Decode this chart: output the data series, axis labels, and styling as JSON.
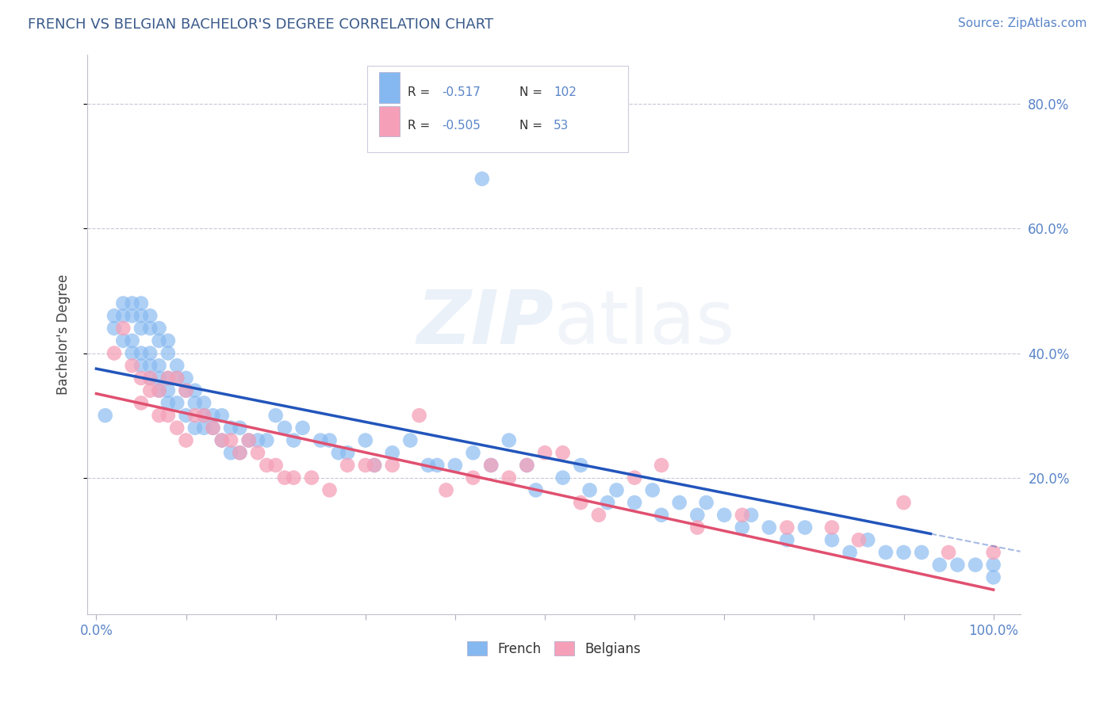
{
  "title": "FRENCH VS BELGIAN BACHELOR'S DEGREE CORRELATION CHART",
  "source": "Source: ZipAtlas.com",
  "ylabel": "Bachelor's Degree",
  "xlabel": "",
  "xlim": [
    -0.01,
    1.03
  ],
  "ylim": [
    -0.02,
    0.88
  ],
  "title_color": "#3a5a8a",
  "axis_color": "#5a85c8",
  "background_color": "#ffffff",
  "french_color": "#85b8f0",
  "belgian_color": "#f5a0b8",
  "french_line_color": "#2255bb",
  "belgian_line_color": "#e05070",
  "watermark": "ZIPatlas",
  "french_intercept": 0.375,
  "french_slope": -0.285,
  "belgian_intercept": 0.335,
  "belgian_slope": -0.315,
  "french_scatter_x": [
    0.01,
    0.02,
    0.02,
    0.03,
    0.03,
    0.03,
    0.04,
    0.04,
    0.04,
    0.04,
    0.05,
    0.05,
    0.05,
    0.05,
    0.05,
    0.06,
    0.06,
    0.06,
    0.06,
    0.06,
    0.07,
    0.07,
    0.07,
    0.07,
    0.07,
    0.08,
    0.08,
    0.08,
    0.08,
    0.08,
    0.09,
    0.09,
    0.09,
    0.1,
    0.1,
    0.1,
    0.11,
    0.11,
    0.11,
    0.12,
    0.12,
    0.12,
    0.13,
    0.13,
    0.14,
    0.14,
    0.15,
    0.15,
    0.16,
    0.16,
    0.17,
    0.18,
    0.19,
    0.2,
    0.21,
    0.22,
    0.23,
    0.25,
    0.26,
    0.27,
    0.28,
    0.3,
    0.31,
    0.33,
    0.35,
    0.37,
    0.38,
    0.4,
    0.42,
    0.43,
    0.44,
    0.46,
    0.48,
    0.49,
    0.52,
    0.54,
    0.55,
    0.57,
    0.58,
    0.6,
    0.62,
    0.63,
    0.65,
    0.67,
    0.68,
    0.7,
    0.72,
    0.73,
    0.75,
    0.77,
    0.79,
    0.82,
    0.84,
    0.86,
    0.88,
    0.9,
    0.92,
    0.94,
    0.96,
    0.98,
    1.0,
    1.0
  ],
  "french_scatter_y": [
    0.3,
    0.46,
    0.44,
    0.48,
    0.46,
    0.42,
    0.48,
    0.46,
    0.42,
    0.4,
    0.48,
    0.46,
    0.44,
    0.4,
    0.38,
    0.46,
    0.44,
    0.4,
    0.38,
    0.36,
    0.44,
    0.42,
    0.38,
    0.36,
    0.34,
    0.42,
    0.4,
    0.36,
    0.34,
    0.32,
    0.38,
    0.36,
    0.32,
    0.36,
    0.34,
    0.3,
    0.34,
    0.32,
    0.28,
    0.32,
    0.3,
    0.28,
    0.3,
    0.28,
    0.3,
    0.26,
    0.28,
    0.24,
    0.28,
    0.24,
    0.26,
    0.26,
    0.26,
    0.3,
    0.28,
    0.26,
    0.28,
    0.26,
    0.26,
    0.24,
    0.24,
    0.26,
    0.22,
    0.24,
    0.26,
    0.22,
    0.22,
    0.22,
    0.24,
    0.68,
    0.22,
    0.26,
    0.22,
    0.18,
    0.2,
    0.22,
    0.18,
    0.16,
    0.18,
    0.16,
    0.18,
    0.14,
    0.16,
    0.14,
    0.16,
    0.14,
    0.12,
    0.14,
    0.12,
    0.1,
    0.12,
    0.1,
    0.08,
    0.1,
    0.08,
    0.08,
    0.08,
    0.06,
    0.06,
    0.06,
    0.06,
    0.04
  ],
  "belgian_scatter_x": [
    0.02,
    0.03,
    0.04,
    0.05,
    0.05,
    0.06,
    0.06,
    0.07,
    0.07,
    0.08,
    0.08,
    0.09,
    0.09,
    0.1,
    0.1,
    0.11,
    0.12,
    0.13,
    0.14,
    0.15,
    0.16,
    0.17,
    0.18,
    0.19,
    0.2,
    0.21,
    0.22,
    0.24,
    0.26,
    0.28,
    0.3,
    0.31,
    0.33,
    0.36,
    0.39,
    0.42,
    0.44,
    0.46,
    0.48,
    0.5,
    0.52,
    0.54,
    0.56,
    0.6,
    0.63,
    0.67,
    0.72,
    0.77,
    0.82,
    0.85,
    0.9,
    0.95,
    1.0
  ],
  "belgian_scatter_y": [
    0.4,
    0.44,
    0.38,
    0.36,
    0.32,
    0.36,
    0.34,
    0.34,
    0.3,
    0.36,
    0.3,
    0.36,
    0.28,
    0.34,
    0.26,
    0.3,
    0.3,
    0.28,
    0.26,
    0.26,
    0.24,
    0.26,
    0.24,
    0.22,
    0.22,
    0.2,
    0.2,
    0.2,
    0.18,
    0.22,
    0.22,
    0.22,
    0.22,
    0.3,
    0.18,
    0.2,
    0.22,
    0.2,
    0.22,
    0.24,
    0.24,
    0.16,
    0.14,
    0.2,
    0.22,
    0.12,
    0.14,
    0.12,
    0.12,
    0.1,
    0.16,
    0.08,
    0.08
  ]
}
